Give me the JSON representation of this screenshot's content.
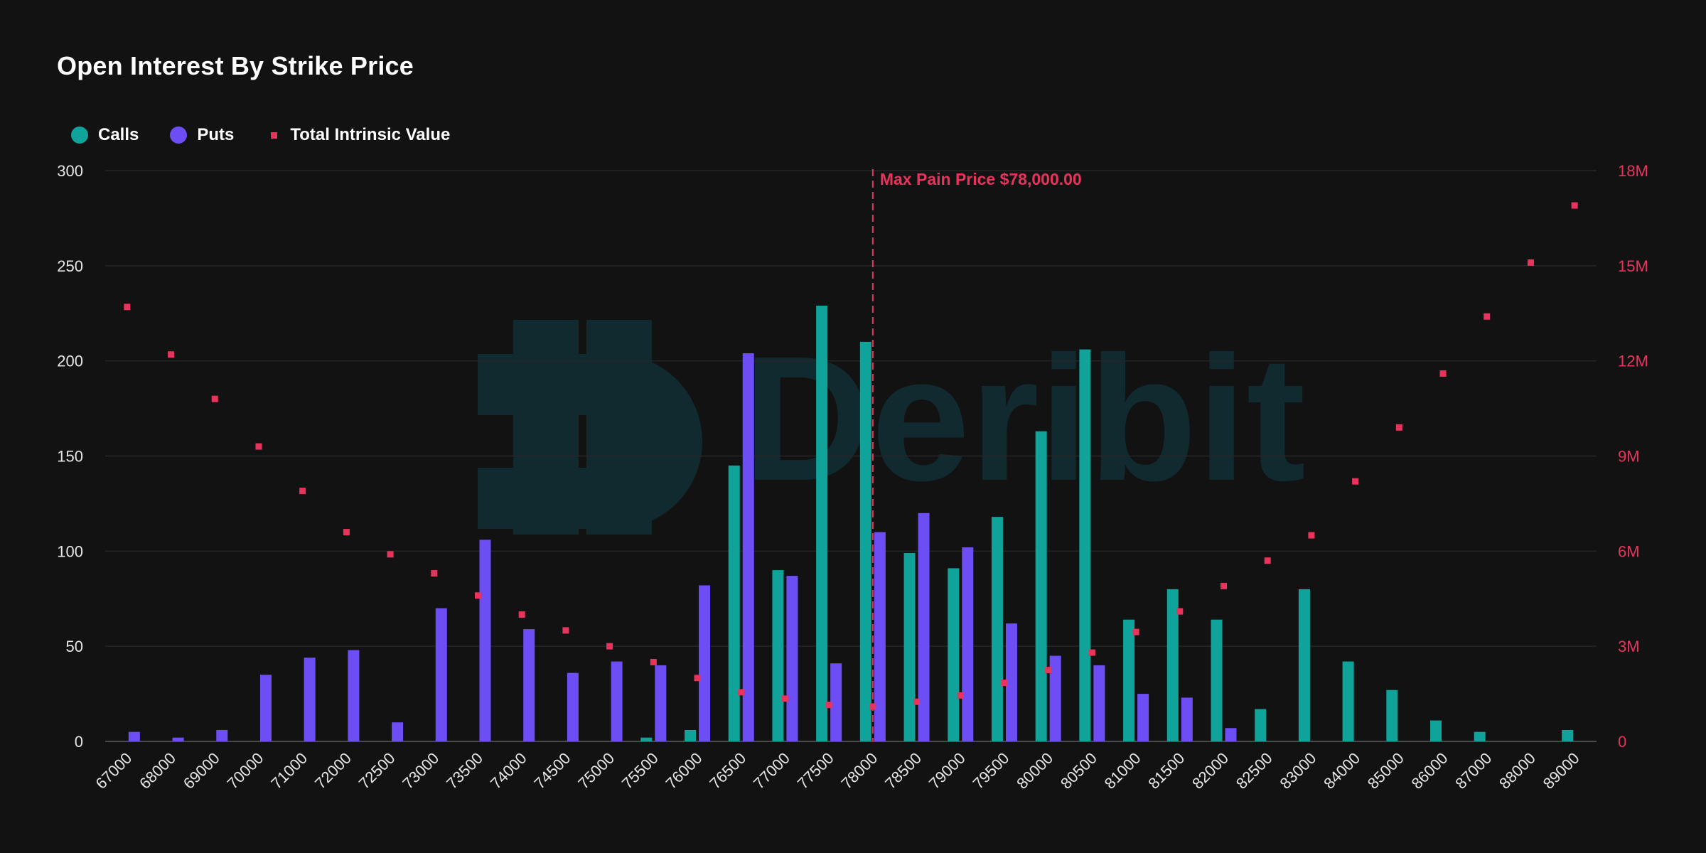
{
  "chart_data": {
    "type": "bar",
    "title": "Open Interest By Strike Price",
    "categories": [
      "67000",
      "68000",
      "69000",
      "70000",
      "71000",
      "72000",
      "72500",
      "73000",
      "73500",
      "74000",
      "74500",
      "75000",
      "75500",
      "76000",
      "76500",
      "77000",
      "77500",
      "78000",
      "78500",
      "79000",
      "79500",
      "80000",
      "80500",
      "81000",
      "81500",
      "82000",
      "82500",
      "83000",
      "84000",
      "85000",
      "86000",
      "87000",
      "88000",
      "89000"
    ],
    "series": [
      {
        "name": "Calls",
        "type": "bar",
        "axis": "left",
        "color": "#0fa39a",
        "values": [
          0,
          0,
          0,
          0,
          0,
          0,
          0,
          0,
          0,
          0,
          0,
          0,
          2,
          6,
          145,
          90,
          229,
          210,
          99,
          91,
          118,
          163,
          206,
          64,
          80,
          64,
          17,
          80,
          42,
          27,
          11,
          5,
          0,
          6
        ]
      },
      {
        "name": "Puts",
        "type": "bar",
        "axis": "left",
        "color": "#6d4ef5",
        "values": [
          5,
          2,
          6,
          35,
          44,
          48,
          10,
          70,
          106,
          59,
          36,
          42,
          40,
          82,
          204,
          87,
          41,
          110,
          120,
          102,
          62,
          45,
          40,
          25,
          23,
          7,
          0,
          0,
          0,
          0,
          0,
          0,
          0,
          0
        ]
      },
      {
        "name": "Total Intrinsic Value",
        "type": "scatter",
        "axis": "right",
        "color": "#e8345c",
        "values": [
          13700000,
          12200000,
          10800000,
          9300000,
          7900000,
          6600000,
          5900000,
          5300000,
          4600000,
          4000000,
          3500000,
          3000000,
          2500000,
          2000000,
          1550000,
          1350000,
          1150000,
          1100000,
          1250000,
          1450000,
          1850000,
          2250000,
          2800000,
          3450000,
          4100000,
          4900000,
          5700000,
          6500000,
          8200000,
          9900000,
          11600000,
          13400000,
          15100000,
          16900000
        ]
      }
    ],
    "y_left": {
      "min": 0,
      "max": 300,
      "ticks": [
        0,
        50,
        100,
        150,
        200,
        250,
        300
      ],
      "tick_labels": [
        "0",
        "50",
        "100",
        "150",
        "200",
        "250",
        "300"
      ]
    },
    "y_right": {
      "min": 0,
      "max": 18000000,
      "ticks": [
        0,
        3000000,
        6000000,
        9000000,
        12000000,
        15000000,
        18000000
      ],
      "tick_labels": [
        "0",
        "3M",
        "6M",
        "9M",
        "12M",
        "15M",
        "18M"
      ]
    },
    "annotation": {
      "label": "Max Pain Price $78,000.00",
      "category": "78000",
      "color": "#e8345c"
    },
    "grid": true,
    "legend_position": "top-left",
    "watermark": {
      "text": "Deribit",
      "icon": "deribit-logo-icon"
    }
  }
}
